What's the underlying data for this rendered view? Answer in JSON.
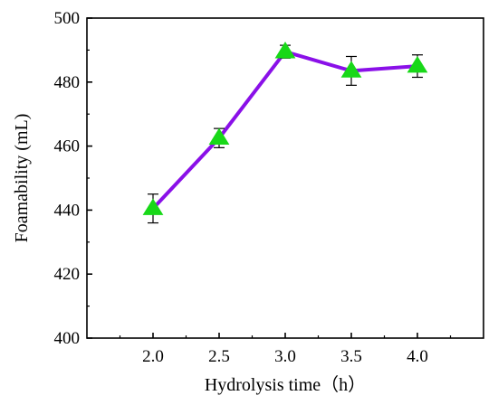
{
  "chart_data": {
    "type": "line",
    "title": "",
    "xlabel": "Hydrolysis time（h）",
    "ylabel": "Foamability (mL)",
    "x": [
      2.0,
      2.5,
      3.0,
      3.5,
      4.0
    ],
    "x_tick_labels": [
      "2.0",
      "2.5",
      "3.0",
      "3.5",
      "4.0"
    ],
    "xlim": [
      1.5,
      4.5
    ],
    "ylim": [
      400,
      500
    ],
    "y_ticks": [
      400,
      420,
      440,
      460,
      480,
      500
    ],
    "y_tick_labels": [
      "400",
      "420",
      "440",
      "460",
      "480",
      "500"
    ],
    "grid": false,
    "legend": "none",
    "series": [
      {
        "values": [
          440.5,
          462.5,
          489.5,
          483.5,
          485.0
        ],
        "error": [
          4.5,
          3.0,
          2.0,
          4.5,
          3.5
        ],
        "line_color": "#8a10e8",
        "marker": "triangle",
        "marker_color": "#18d818"
      }
    ]
  }
}
